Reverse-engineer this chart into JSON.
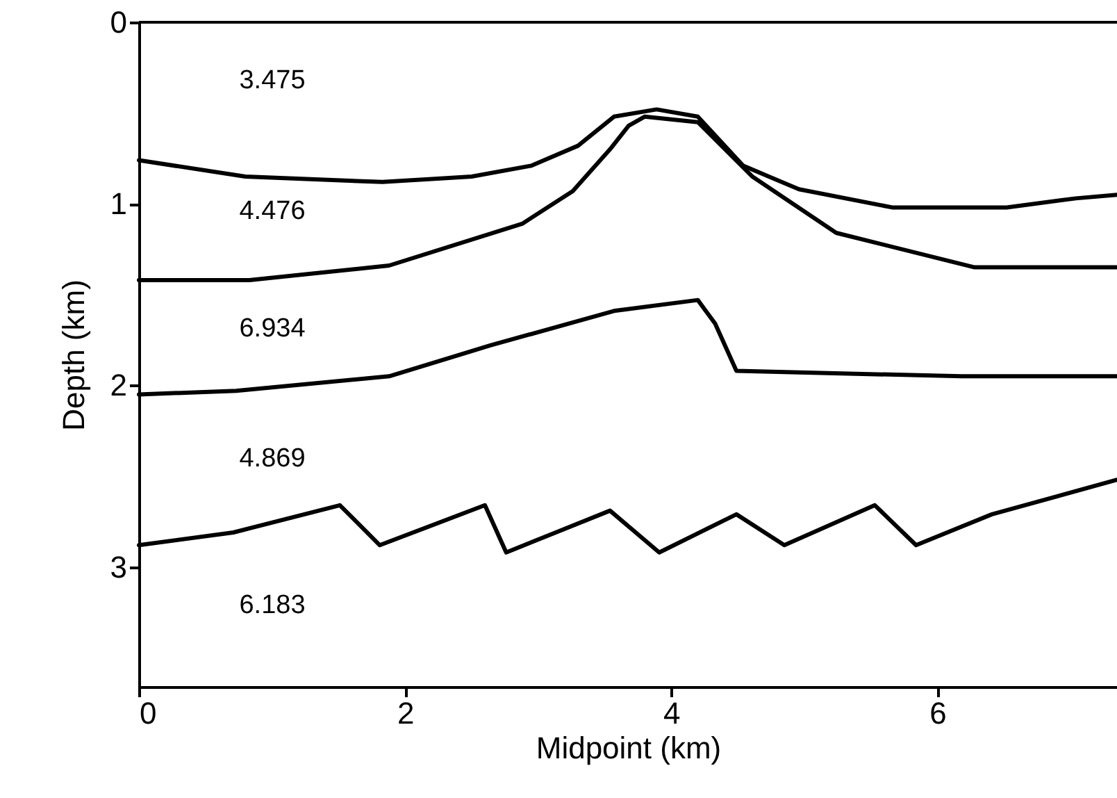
{
  "chart_data": {
    "type": "line",
    "xlabel": "Midpoint (km)",
    "ylabel": "Depth (km)",
    "xlim": [
      0,
      7.35
    ],
    "ylim": [
      3.66,
      0
    ],
    "xticks": [
      0,
      2,
      4,
      6
    ],
    "yticks": [
      0,
      1,
      2,
      3
    ],
    "grid": false,
    "marker": "none",
    "line_style": "solid",
    "series": [
      {
        "color": "#000000",
        "x": [
          0,
          0.8,
          1.83,
          2.5,
          2.95,
          3.3,
          3.57,
          3.89,
          4.2,
          4.54,
          4.96,
          5.66,
          6.52,
          7.04,
          7.35
        ],
        "values": [
          0.76,
          0.85,
          0.88,
          0.85,
          0.79,
          0.68,
          0.52,
          0.48,
          0.52,
          0.79,
          0.92,
          1.02,
          1.02,
          0.97,
          0.95
        ]
      },
      {
        "color": "#000000",
        "x": [
          0,
          0.83,
          1.88,
          2.88,
          3.26,
          3.54,
          3.68,
          3.8,
          4.2,
          4.61,
          5.24,
          6.28,
          7.35
        ],
        "values": [
          1.42,
          1.42,
          1.34,
          1.11,
          0.93,
          0.7,
          0.57,
          0.52,
          0.55,
          0.85,
          1.16,
          1.35,
          1.35
        ]
      },
      {
        "color": "#000000",
        "x": [
          0,
          0.73,
          1.88,
          2.64,
          3.57,
          4.2,
          4.33,
          4.49,
          6.18,
          7.35
        ],
        "values": [
          2.05,
          2.03,
          1.95,
          1.78,
          1.59,
          1.53,
          1.66,
          1.92,
          1.95,
          1.95
        ]
      },
      {
        "color": "#000000",
        "x": [
          0,
          0.71,
          1.51,
          1.81,
          2.6,
          2.76,
          3.54,
          3.91,
          4.49,
          4.85,
          5.53,
          5.84,
          6.41,
          7.35
        ],
        "values": [
          2.88,
          2.81,
          2.66,
          2.88,
          2.66,
          2.92,
          2.69,
          2.92,
          2.71,
          2.88,
          2.66,
          2.88,
          2.71,
          2.52
        ]
      }
    ],
    "annotations": [
      "3.475",
      "4.476",
      "6.934",
      "4.869",
      "6.183"
    ]
  }
}
